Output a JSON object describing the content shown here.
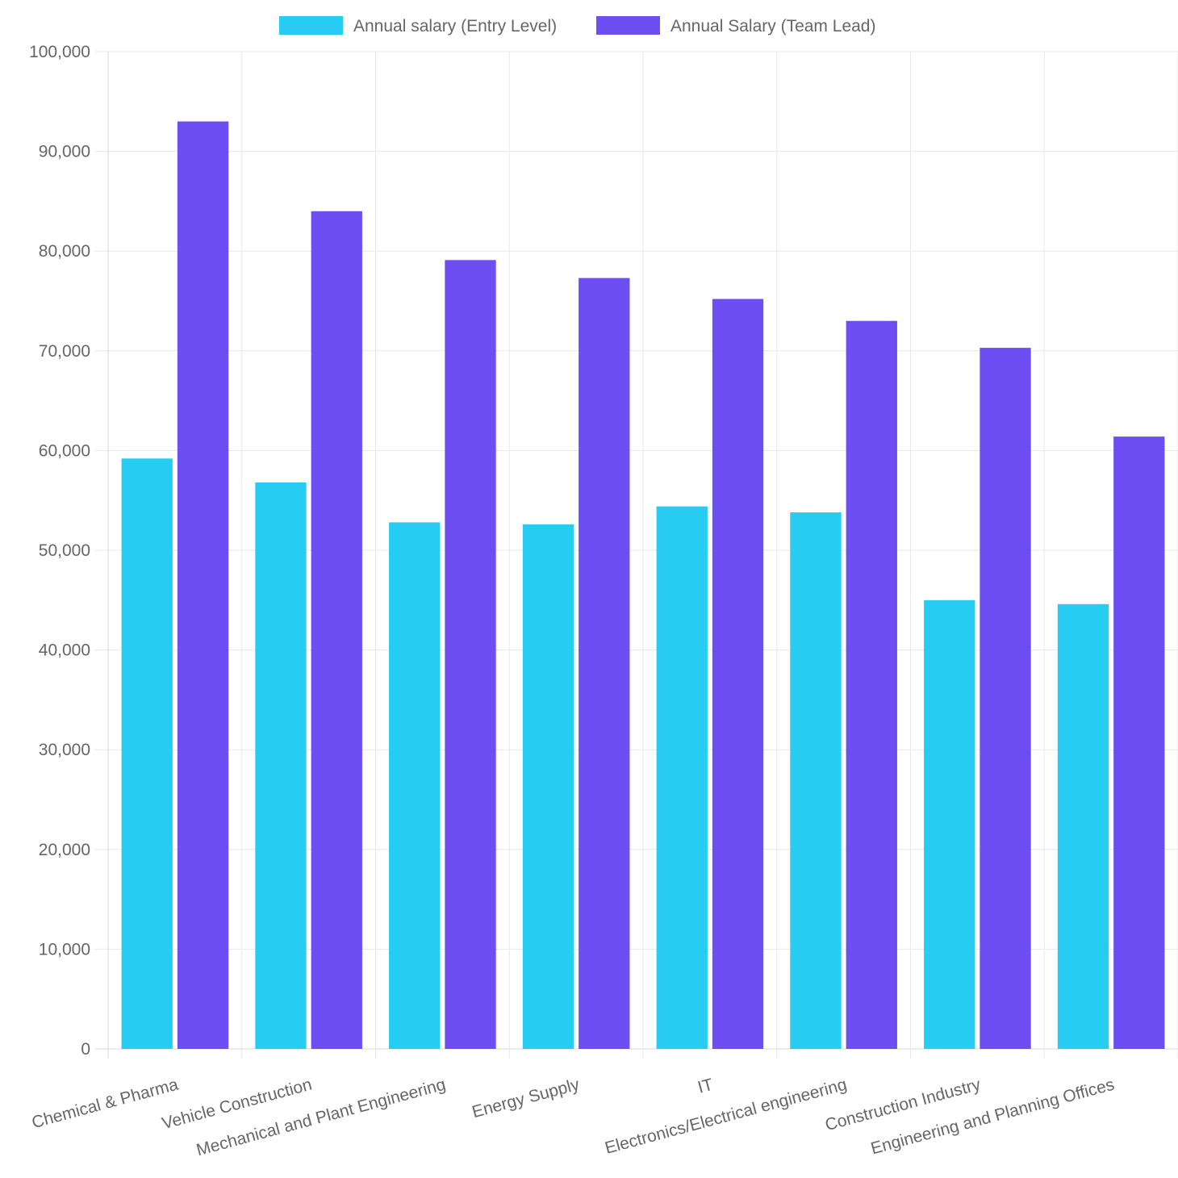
{
  "chart_data": {
    "type": "bar",
    "categories": [
      "Chemical & Pharma",
      "Vehicle Construction",
      "Mechanical and Plant Engineering",
      "Energy Supply",
      "IT",
      "Electronics/Electrical engineering",
      "Construction Industry",
      "Engineering and Planning Offices"
    ],
    "series": [
      {
        "name": "Annual salary (Entry Level)",
        "color": "#26ccf2",
        "values": [
          59200,
          56800,
          52800,
          52600,
          54400,
          53800,
          45000,
          44600
        ]
      },
      {
        "name": "Annual Salary (Team Lead)",
        "color": "#6c4ef2",
        "values": [
          93000,
          84000,
          79100,
          77300,
          75200,
          73000,
          70300,
          61400
        ]
      }
    ],
    "y_ticks": [
      "0",
      "10,000",
      "20,000",
      "30,000",
      "40,000",
      "50,000",
      "60,000",
      "70,000",
      "80,000",
      "90,000",
      "100,000"
    ],
    "ylim": [
      0,
      100000
    ],
    "grid": true,
    "legend_position": "top-center"
  }
}
